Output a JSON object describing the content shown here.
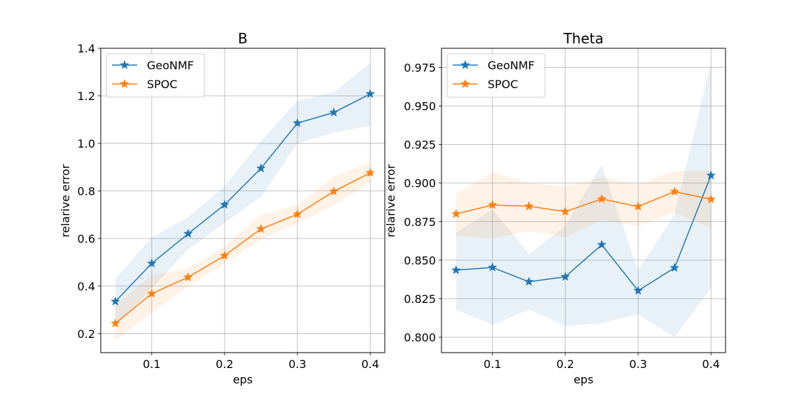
{
  "chart_data": [
    {
      "type": "line",
      "title": "B",
      "xlabel": "eps",
      "ylabel": "relarive error",
      "xlim": [
        0.03,
        0.42
      ],
      "ylim": [
        0.12,
        1.4
      ],
      "xticks": [
        0.1,
        0.2,
        0.3,
        0.4
      ],
      "xtick_labels": [
        "0.1",
        "0.2",
        "0.3",
        "0.4"
      ],
      "yticks": [
        0.2,
        0.4,
        0.6,
        0.8,
        1.0,
        1.2,
        1.4
      ],
      "ytick_labels": [
        "0.2",
        "0.4",
        "0.6",
        "0.8",
        "1.0",
        "1.2",
        "1.4"
      ],
      "grid": true,
      "legend_position": "top-left",
      "x": [
        0.05,
        0.1,
        0.15,
        0.2,
        0.25,
        0.3,
        0.35,
        0.4
      ],
      "series": [
        {
          "name": "GeoNMF",
          "color": "#1f77b4",
          "values": [
            0.335,
            0.495,
            0.62,
            0.742,
            0.895,
            1.085,
            1.13,
            1.208
          ],
          "lower": [
            0.23,
            0.39,
            0.555,
            0.665,
            0.775,
            1.0,
            1.045,
            1.075
          ],
          "upper": [
            0.43,
            0.605,
            0.69,
            0.82,
            1.01,
            1.18,
            1.215,
            1.34
          ]
        },
        {
          "name": "SPOC",
          "color": "#ff7f0e",
          "values": [
            0.243,
            0.368,
            0.437,
            0.528,
            0.64,
            0.702,
            0.798,
            0.876
          ],
          "lower": [
            0.17,
            0.29,
            0.4,
            0.495,
            0.595,
            0.665,
            0.74,
            0.835
          ],
          "upper": [
            0.32,
            0.445,
            0.475,
            0.565,
            0.7,
            0.74,
            0.86,
            0.92
          ]
        }
      ]
    },
    {
      "type": "line",
      "title": "Theta",
      "xlabel": "eps",
      "ylabel": "relarive error",
      "xlim": [
        0.03,
        0.42
      ],
      "ylim": [
        0.79,
        0.9875
      ],
      "xticks": [
        0.1,
        0.2,
        0.3,
        0.4
      ],
      "xtick_labels": [
        "0.1",
        "0.2",
        "0.3",
        "0.4"
      ],
      "yticks": [
        0.8,
        0.825,
        0.85,
        0.875,
        0.9,
        0.925,
        0.95,
        0.975
      ],
      "ytick_labels": [
        "0.800",
        "0.825",
        "0.850",
        "0.875",
        "0.900",
        "0.925",
        "0.950",
        "0.975"
      ],
      "grid": true,
      "legend_position": "top-left",
      "x": [
        0.05,
        0.1,
        0.15,
        0.2,
        0.25,
        0.3,
        0.35,
        0.4
      ],
      "series": [
        {
          "name": "GeoNMF",
          "color": "#1f77b4",
          "values": [
            0.8435,
            0.8453,
            0.836,
            0.8392,
            0.86,
            0.8302,
            0.845,
            0.905
          ],
          "lower": [
            0.818,
            0.808,
            0.818,
            0.8075,
            0.809,
            0.815,
            0.8,
            0.832
          ],
          "upper": [
            0.868,
            0.883,
            0.854,
            0.872,
            0.912,
            0.843,
            0.88,
            0.978
          ]
        },
        {
          "name": "SPOC",
          "color": "#ff7f0e",
          "values": [
            0.88,
            0.8858,
            0.885,
            0.8815,
            0.8897,
            0.8848,
            0.8945,
            0.8895
          ],
          "lower": [
            0.866,
            0.864,
            0.869,
            0.865,
            0.876,
            0.872,
            0.881,
            0.871
          ],
          "upper": [
            0.893,
            0.907,
            0.9,
            0.898,
            0.904,
            0.899,
            0.908,
            0.908
          ]
        }
      ]
    }
  ]
}
